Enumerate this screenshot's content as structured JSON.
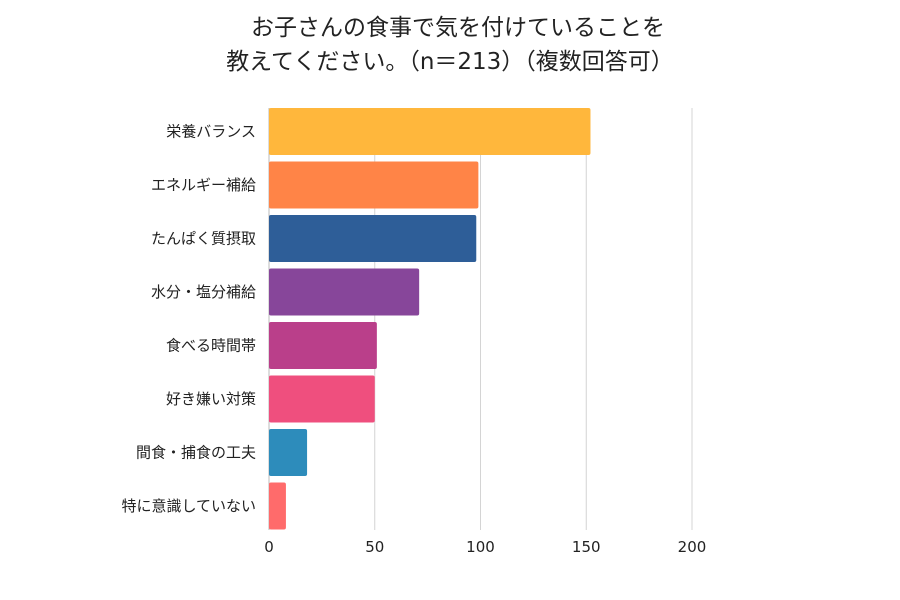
{
  "chart_data": {
    "type": "bar",
    "orientation": "horizontal",
    "title_lines": [
      "お子さんの食事で気を付けていることを",
      "教えてください。（n＝213）（複数回答可）"
    ],
    "categories": [
      "栄養バランス",
      "エネルギー補給",
      "たんぱく質摂取",
      "水分・塩分補給",
      "食べる時間帯",
      "好き嫌い対策",
      "間食・捕食の工夫",
      "特に意識していない"
    ],
    "values": [
      152,
      99,
      98,
      71,
      51,
      50,
      18,
      8
    ],
    "colors": [
      "#FFB73C",
      "#FF8447",
      "#2E5E98",
      "#87469A",
      "#BA3F8A",
      "#EF4F7E",
      "#2D8CBB",
      "#FF6B6B"
    ],
    "xlim": [
      0,
      200
    ],
    "xticks": [
      "0",
      "50",
      "100",
      "150",
      "200"
    ],
    "grid": true,
    "legend": "none"
  }
}
